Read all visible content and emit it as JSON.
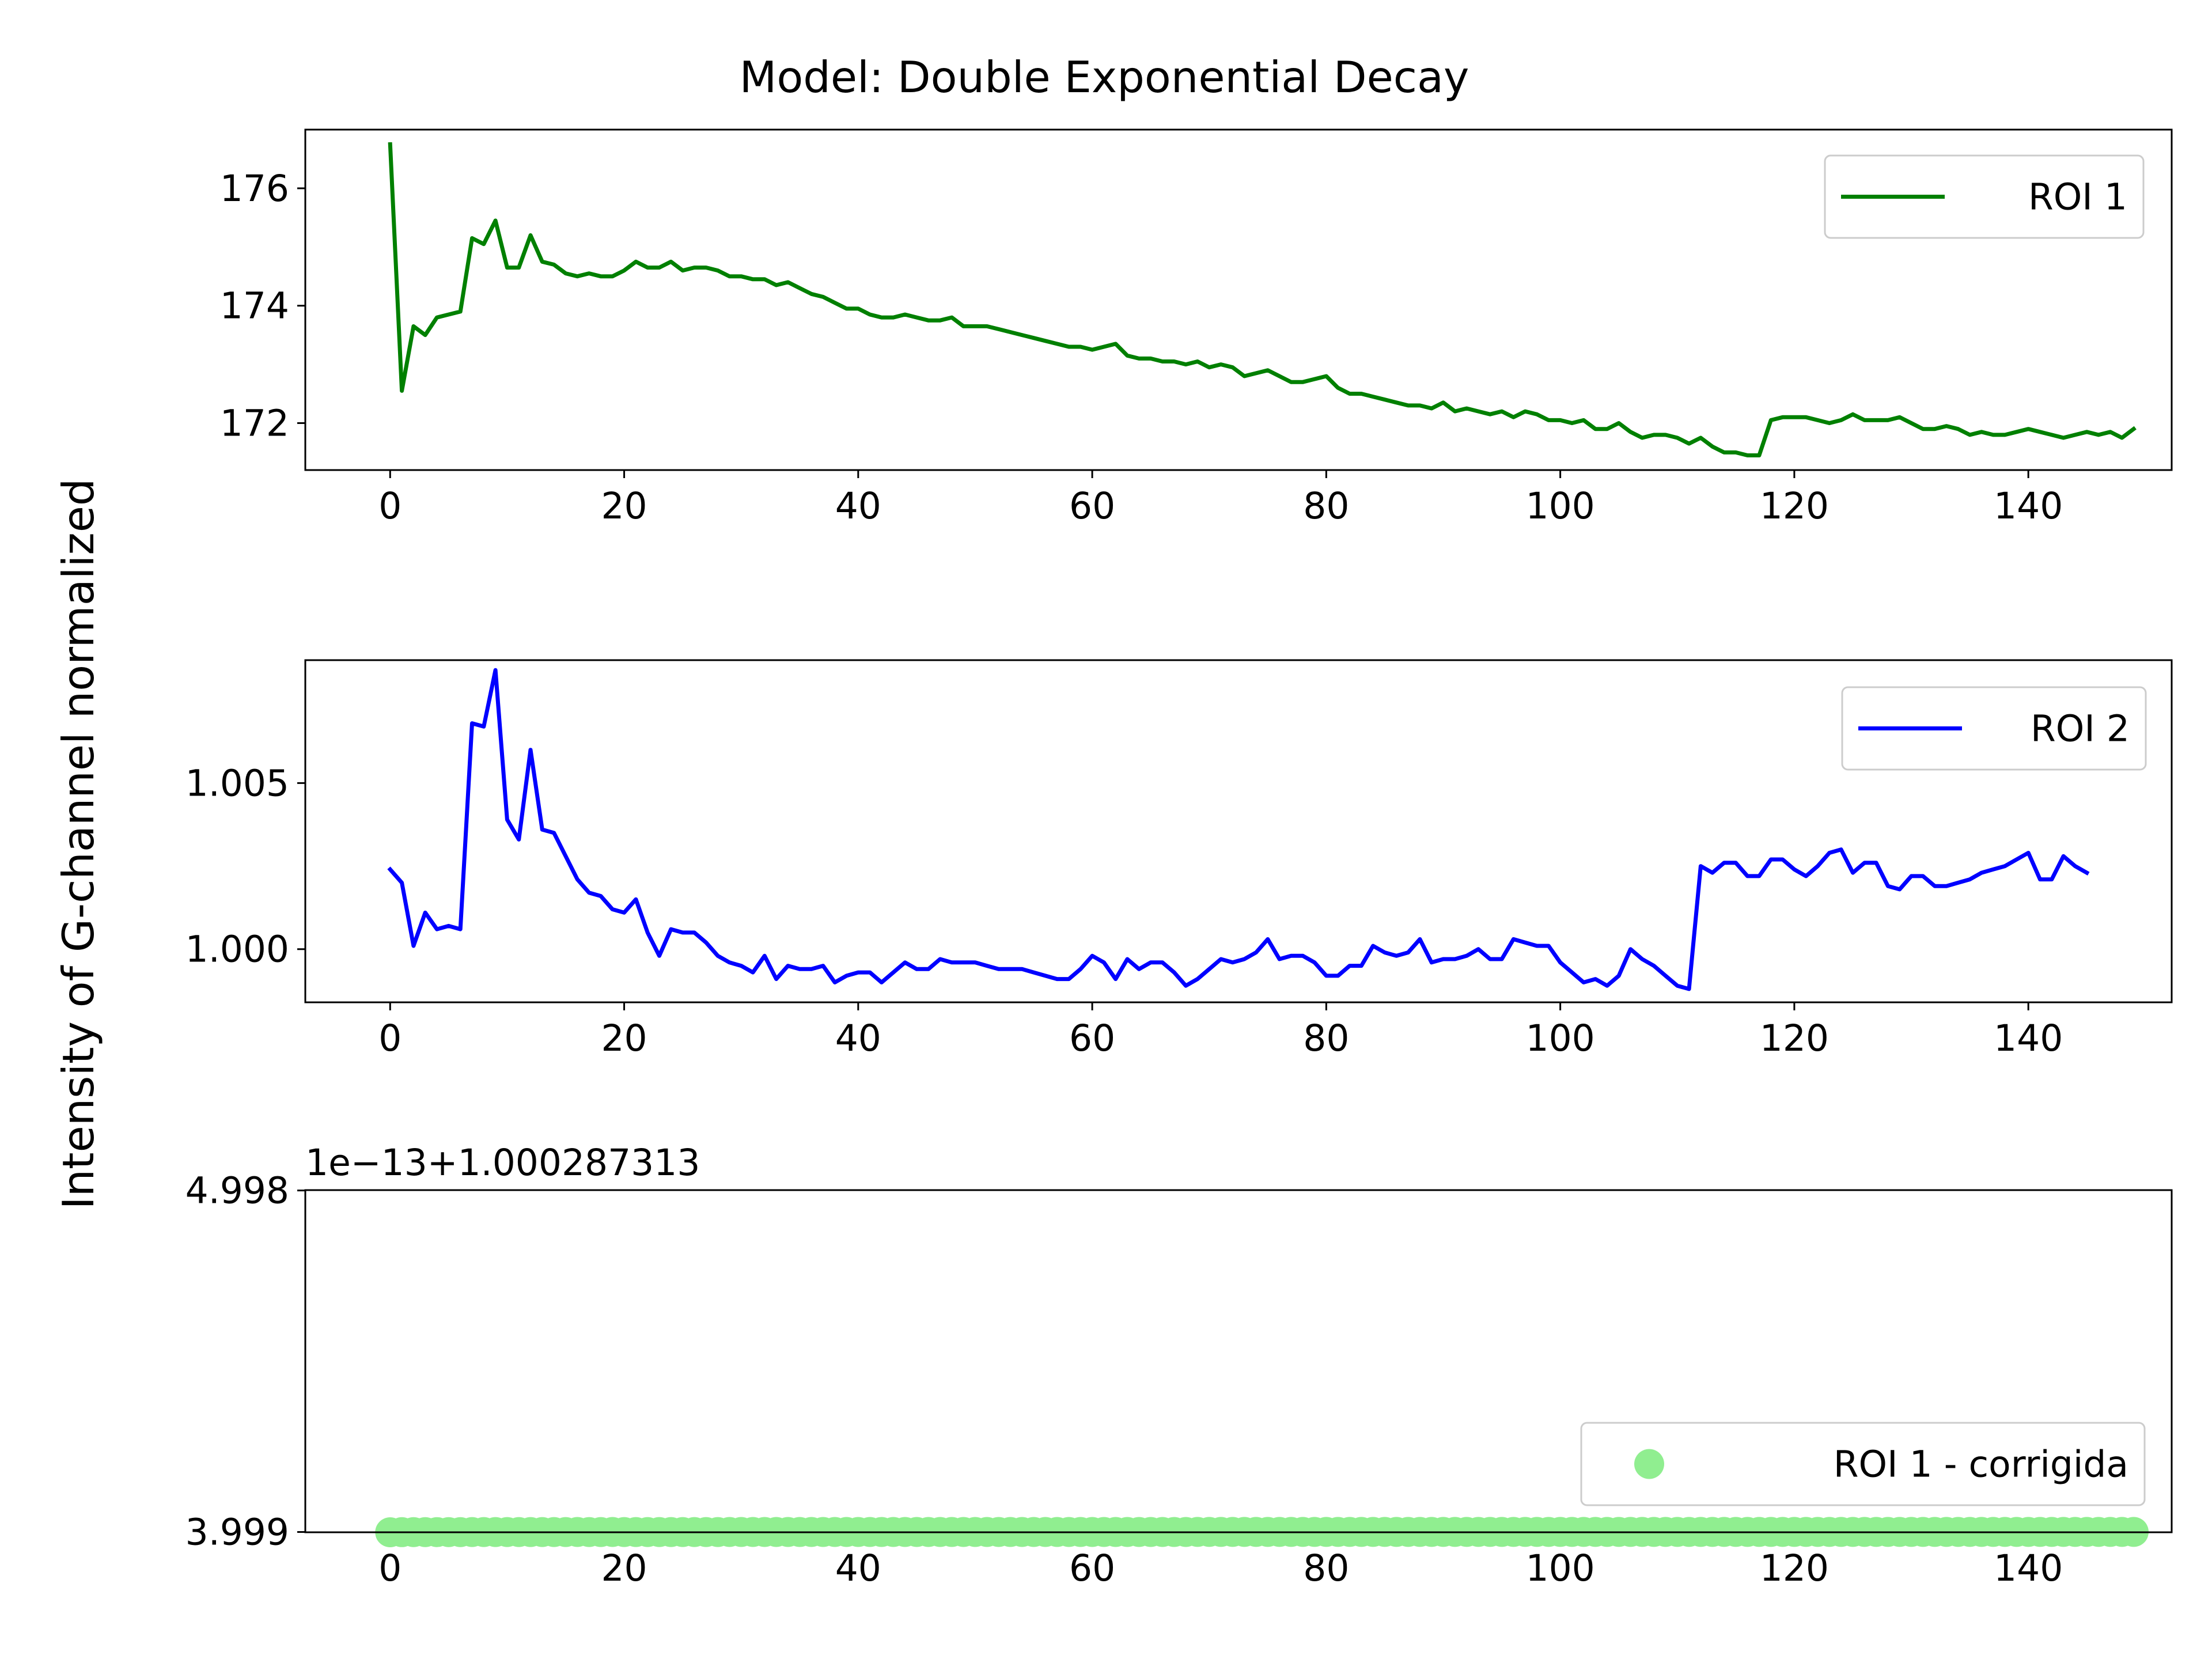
{
  "figure": {
    "title": "Model: Double Exponential Decay",
    "ylabel": "Intensity of G-channel normalized",
    "offset_text": "1e−13+1.000287313"
  },
  "chart_data": [
    {
      "type": "line",
      "title": "Model: Double Exponential Decay",
      "xlabel": "",
      "ylabel": "Intensity of G-channel normalized",
      "color": "#008000",
      "xlim": [
        -7.25,
        152.25
      ],
      "ylim": [
        171.2,
        177.0
      ],
      "xticks": [
        0,
        20,
        40,
        60,
        80,
        100,
        120,
        140
      ],
      "yticks": [
        172,
        174,
        176
      ],
      "grid": false,
      "legend": "top-right",
      "series": [
        {
          "name": "ROI 1",
          "x_start": 0,
          "values": [
            176.75,
            172.55,
            173.65,
            173.5,
            173.8,
            173.85,
            173.9,
            175.15,
            175.05,
            175.45,
            174.65,
            174.65,
            175.2,
            174.75,
            174.7,
            174.55,
            174.5,
            174.55,
            174.5,
            174.5,
            174.6,
            174.75,
            174.65,
            174.65,
            174.75,
            174.6,
            174.65,
            174.65,
            174.6,
            174.5,
            174.5,
            174.45,
            174.45,
            174.35,
            174.4,
            174.3,
            174.2,
            174.15,
            174.05,
            173.95,
            173.95,
            173.85,
            173.8,
            173.8,
            173.85,
            173.8,
            173.75,
            173.75,
            173.8,
            173.65,
            173.65,
            173.65,
            173.6,
            173.55,
            173.5,
            173.45,
            173.4,
            173.35,
            173.3,
            173.3,
            173.25,
            173.3,
            173.35,
            173.15,
            173.1,
            173.1,
            173.05,
            173.05,
            173.0,
            173.05,
            172.95,
            173.0,
            172.95,
            172.8,
            172.85,
            172.9,
            172.8,
            172.7,
            172.7,
            172.75,
            172.8,
            172.6,
            172.5,
            172.5,
            172.45,
            172.4,
            172.35,
            172.3,
            172.3,
            172.25,
            172.35,
            172.2,
            172.25,
            172.2,
            172.15,
            172.2,
            172.1,
            172.2,
            172.15,
            172.05,
            172.05,
            172.0,
            172.05,
            171.9,
            171.9,
            172.0,
            171.85,
            171.75,
            171.8,
            171.8,
            171.75,
            171.65,
            171.75,
            171.6,
            171.5,
            171.5,
            171.45,
            171.45,
            172.05,
            172.1,
            172.1,
            172.1,
            172.05,
            172.0,
            172.05,
            172.15,
            172.05,
            172.05,
            172.05,
            172.1,
            172.0,
            171.9,
            171.9,
            171.95,
            171.9,
            171.8,
            171.85,
            171.8,
            171.8,
            171.85,
            171.9,
            171.85,
            171.8,
            171.75,
            171.8,
            171.85,
            171.8,
            171.85,
            171.75,
            171.9
          ]
        }
      ]
    },
    {
      "type": "line",
      "xlabel": "",
      "ylabel": "",
      "color": "#0000ff",
      "xlim": [
        -7.25,
        152.25
      ],
      "ylim": [
        0.9984,
        1.0087
      ],
      "xticks": [
        0,
        20,
        40,
        60,
        80,
        100,
        120,
        140
      ],
      "yticks": [
        1.0,
        1.005
      ],
      "ytick_labels": [
        "1.000",
        "1.005"
      ],
      "grid": false,
      "legend": "top-right",
      "series": [
        {
          "name": "ROI 2",
          "x_start": 0,
          "values": [
            1.0024,
            1.002,
            1.0001,
            1.0011,
            1.0006,
            1.0007,
            1.0006,
            1.0068,
            1.0067,
            1.0084,
            1.0039,
            1.0033,
            1.006,
            1.0036,
            1.0035,
            1.0028,
            1.0021,
            1.0017,
            1.0016,
            1.0012,
            1.0011,
            1.0015,
            1.0005,
            0.9998,
            1.0006,
            1.0005,
            1.0005,
            1.0002,
            0.9998,
            0.9996,
            0.9995,
            0.9993,
            0.9998,
            0.9991,
            0.9995,
            0.9994,
            0.9994,
            0.9995,
            0.999,
            0.9992,
            0.9993,
            0.9993,
            0.999,
            0.9993,
            0.9996,
            0.9994,
            0.9994,
            0.9997,
            0.9996,
            0.9996,
            0.9996,
            0.9995,
            0.9994,
            0.9994,
            0.9994,
            0.9993,
            0.9992,
            0.9991,
            0.9991,
            0.9994,
            0.9998,
            0.9996,
            0.9991,
            0.9997,
            0.9994,
            0.9996,
            0.9996,
            0.9993,
            0.9989,
            0.9991,
            0.9994,
            0.9997,
            0.9996,
            0.9997,
            0.9999,
            1.0003,
            0.9997,
            0.9998,
            0.9998,
            0.9996,
            0.9992,
            0.9992,
            0.9995,
            0.9995,
            1.0001,
            0.9999,
            0.9998,
            0.9999,
            1.0003,
            0.9996,
            0.9997,
            0.9997,
            0.9998,
            1.0,
            0.9997,
            0.9997,
            1.0003,
            1.0002,
            1.0001,
            1.0001,
            0.9996,
            0.9993,
            0.999,
            0.9991,
            0.9989,
            0.9992,
            1.0,
            0.9997,
            0.9995,
            0.9992,
            0.9989,
            0.9988,
            1.0025,
            1.0023,
            1.0026,
            1.0026,
            1.0022,
            1.0022,
            1.0027,
            1.0027,
            1.0024,
            1.0022,
            1.0025,
            1.0029,
            1.003,
            1.0023,
            1.0026,
            1.0026,
            1.0019,
            1.0018,
            1.0022,
            1.0022,
            1.0019,
            1.0019,
            1.002,
            1.0021,
            1.0023,
            1.0024,
            1.0025,
            1.0027,
            1.0029,
            1.0021,
            1.0021,
            1.0028,
            1.0025,
            1.0023
          ]
        }
      ]
    },
    {
      "type": "scatter",
      "xlabel": "",
      "ylabel": "",
      "color": "#90ee90",
      "xlim": [
        -7.25,
        152.25
      ],
      "ylim": [
        3.9982,
        4.99905
      ],
      "xticks": [
        0,
        20,
        40,
        60,
        80,
        100,
        120,
        140
      ],
      "yticks": [
        3.999,
        4.998
      ],
      "ytick_labels": [
        "3.999",
        "4.998"
      ],
      "offset_text": "1e−13+1.000287313",
      "grid": false,
      "legend": "bottom-right",
      "series": [
        {
          "name": "ROI 1 - corrigida",
          "x_start": 0,
          "values": [
            3.99825,
            3.99856,
            3.99867,
            3.99869,
            3.99867,
            3.99866,
            3.99866,
            3.99889,
            3.9989,
            3.99888,
            3.99894,
            3.99894,
            3.99889,
            3.99893,
            3.99894,
            3.99895,
            3.99896,
            3.99895,
            3.99895,
            3.99896,
            3.99895,
            3.99893,
            3.99894,
            3.99895,
            3.99894,
            3.99895,
            3.99894,
            3.99894,
            3.99895,
            3.99896,
            3.99896,
            3.99896,
            3.99897,
            3.99898,
            3.99897,
            3.99898,
            3.99899,
            3.99899,
            3.999,
            3.99901,
            3.99901,
            3.99902,
            3.99902,
            3.99903,
            3.99903,
            3.99903,
            3.99904,
            3.99904,
            3.99904,
            3.99905,
            3.99905,
            3.99905,
            3.99906,
            3.99906,
            3.99907,
            3.99907,
            3.99908,
            3.99908,
            3.99909,
            3.99909,
            3.99908,
            3.99909,
            3.9991,
            3.99911,
            3.99911,
            3.99911,
            3.99911,
            3.99911,
            3.99912,
            3.99913,
            3.99913,
            3.99913,
            3.99914,
            3.99915,
            3.99915,
            3.99915,
            3.99915,
            3.99916,
            3.99917,
            3.99917,
            3.99918,
            3.99918,
            3.99919,
            3.99919,
            3.99919,
            3.9992,
            3.9992,
            3.9992,
            3.99921,
            3.99921,
            3.99921,
            3.99922,
            3.99922,
            3.99922,
            3.99923,
            3.99923,
            3.99923,
            3.99924,
            3.99924,
            3.99924,
            3.99925,
            3.99925,
            3.99924,
            3.99924,
            3.99925,
            3.99925,
            3.99925,
            3.99925,
            3.99926,
            3.99926,
            3.99926,
            3.99926,
            3.99922,
            3.99922,
            3.99922,
            3.99922,
            3.99922,
            3.99922,
            3.99923,
            3.99922,
            3.99921,
            3.99922,
            3.99922,
            3.99922,
            3.99922,
            3.99923,
            3.99923,
            3.99922,
            3.99923,
            3.99923,
            3.99923,
            3.99923,
            3.99924,
            3.99924,
            3.99924,
            3.99924,
            3.99923,
            3.99923,
            3.99924,
            3.99924,
            3.99924,
            3.99925,
            3.99924,
            3.99924,
            3.99924,
            3.99924,
            3.99923,
            3.99924,
            3.99923,
            3.99923
          ]
        }
      ]
    }
  ]
}
